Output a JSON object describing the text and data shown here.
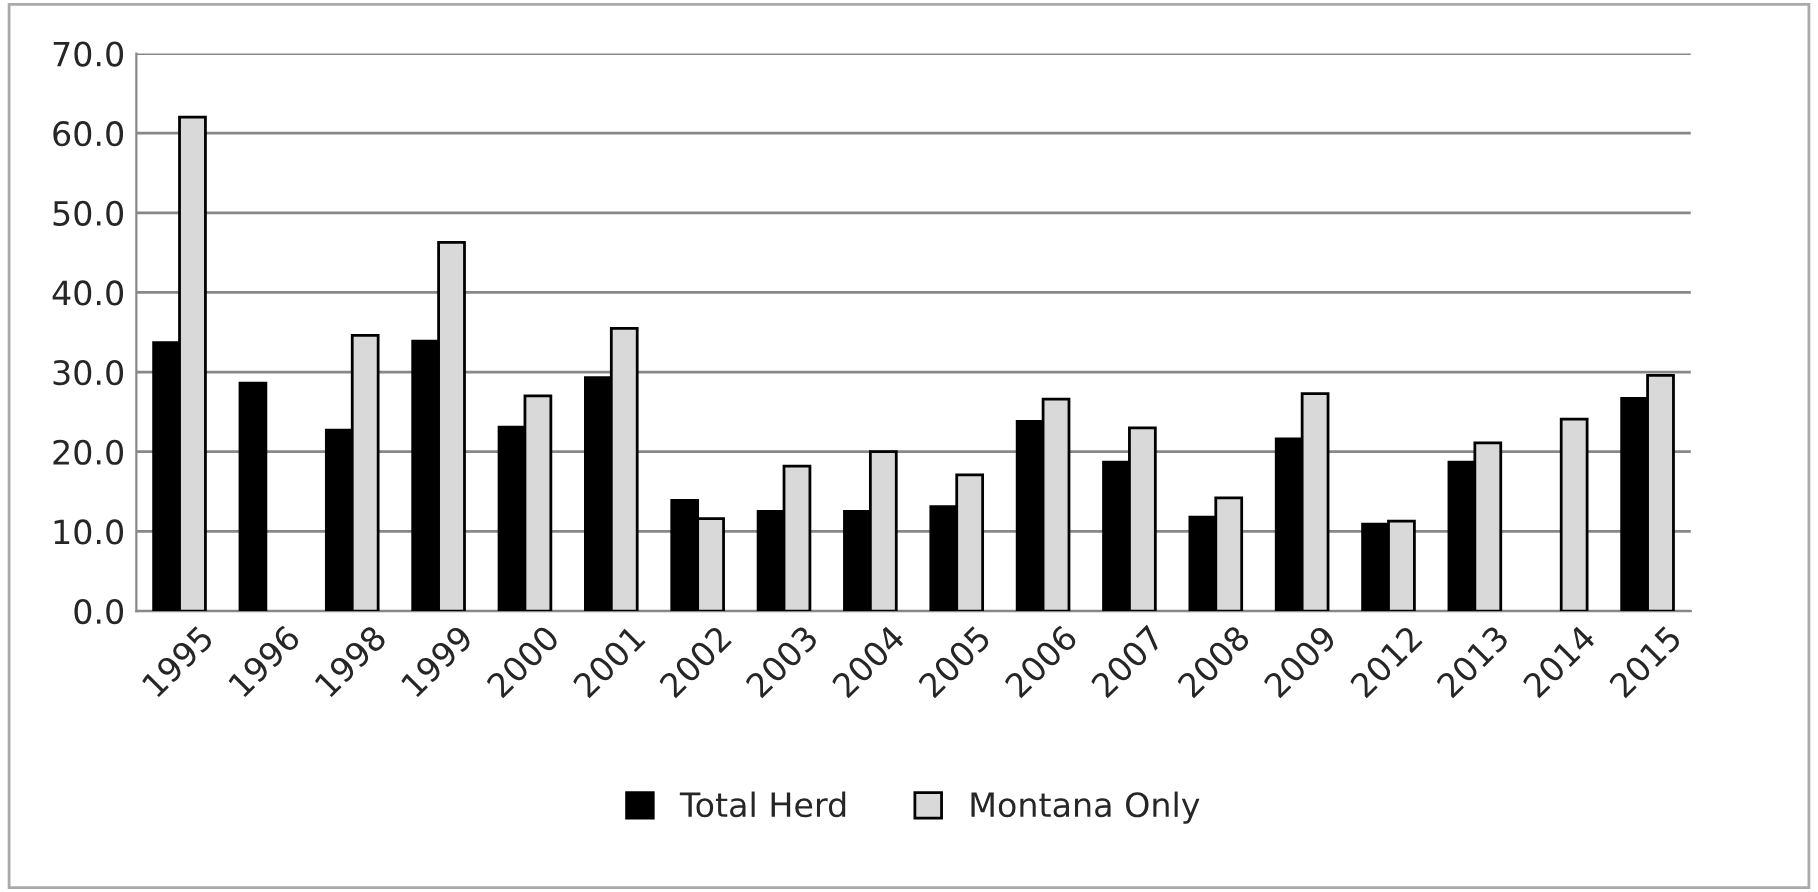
{
  "chart_data": {
    "type": "bar",
    "categories": [
      "1995",
      "1996",
      "1998",
      "1999",
      "2000",
      "2001",
      "2002",
      "2003",
      "2004",
      "2005",
      "2006",
      "2007",
      "2008",
      "2009",
      "2012",
      "2013",
      "2014",
      "2015"
    ],
    "series": [
      {
        "name": "Total Herd",
        "color": "#000000",
        "values": [
          33.7,
          28.6,
          22.7,
          33.9,
          23.1,
          29.3,
          13.9,
          12.5,
          12.5,
          13.1,
          23.8,
          18.7,
          11.8,
          21.6,
          10.9,
          18.7,
          null,
          26.7
        ]
      },
      {
        "name": "Montana Only",
        "color": "#d9d9d9",
        "values": [
          62.0,
          null,
          34.6,
          46.3,
          27.0,
          35.5,
          11.6,
          18.2,
          20.0,
          17.1,
          26.6,
          23.0,
          14.2,
          27.3,
          11.3,
          21.1,
          24.1,
          29.6
        ]
      }
    ],
    "ylim": [
      0,
      70
    ],
    "yticks": [
      {
        "value": 0,
        "label": "0.0"
      },
      {
        "value": 10,
        "label": "10.0"
      },
      {
        "value": 20,
        "label": "20.0"
      },
      {
        "value": 30,
        "label": "30.0"
      },
      {
        "value": 40,
        "label": "40.0"
      },
      {
        "value": 50,
        "label": "50.0"
      },
      {
        "value": 60,
        "label": "60.0"
      },
      {
        "value": 70,
        "label": "70.0"
      }
    ],
    "grid": "y",
    "legend": "bottom"
  }
}
